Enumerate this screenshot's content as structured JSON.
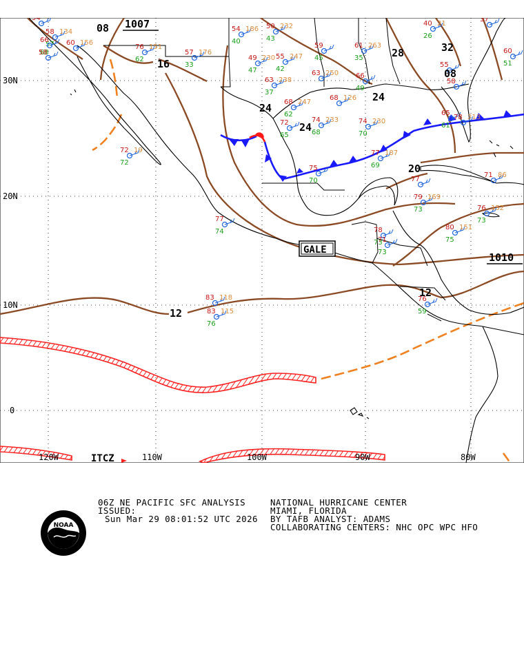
{
  "map": {
    "lat_labels": [
      "30N",
      "20N",
      "10N",
      "0"
    ],
    "lon_labels": [
      "120W",
      "110W",
      "100W",
      "90W",
      "80W"
    ],
    "pressure_boxes": [
      "1007",
      "1010"
    ],
    "isobar_labels": [
      "08",
      "16",
      "24",
      "24",
      "24",
      "28",
      "32",
      "20",
      "12",
      "12",
      "08"
    ],
    "features": {
      "gale": "GALE",
      "itcz": "ITCZ"
    },
    "colors": {
      "isobar": "#8b4a24",
      "cold_front": "#1a1aff",
      "warm_front": "#ff1a1a",
      "itcz": "#ff2020",
      "trough": "#f08020",
      "station": "#1e64dc",
      "temp": "#c81414",
      "dewpoint": "#18a018",
      "pressure_value": "#dc8c3c",
      "land": "#000000"
    },
    "stations": [
      {
        "t": "54",
        "d": "",
        "p": ""
      },
      {
        "t": "58",
        "d": "57",
        "p": "134"
      },
      {
        "t": "60",
        "d": "",
        "p": "156"
      },
      {
        "t": "66",
        "d": "68",
        "p": ""
      },
      {
        "t": "58",
        "d": "",
        "p": ""
      },
      {
        "t": "76",
        "d": "62",
        "p": "151"
      },
      {
        "t": "57",
        "d": "33",
        "p": "176"
      },
      {
        "t": "54",
        "d": "40",
        "p": "186"
      },
      {
        "t": "50",
        "d": "43",
        "p": "232"
      },
      {
        "t": "49",
        "d": "47",
        "p": "230"
      },
      {
        "t": "55",
        "d": "42",
        "p": "247"
      },
      {
        "t": "59",
        "d": "45",
        "p": ""
      },
      {
        "t": "61",
        "d": "35",
        "p": "263"
      },
      {
        "t": "63",
        "d": "37",
        "p": "238"
      },
      {
        "t": "63",
        "d": "",
        "p": "250"
      },
      {
        "t": "66",
        "d": "49",
        "p": ""
      },
      {
        "t": "68",
        "d": "62",
        "p": "247"
      },
      {
        "t": "72",
        "d": "65",
        "p": ""
      },
      {
        "t": "74",
        "d": "68",
        "p": "233"
      },
      {
        "t": "68",
        "d": "",
        "p": "126"
      },
      {
        "t": "74",
        "d": "70",
        "p": "230"
      },
      {
        "t": "77",
        "d": "69",
        "p": "187"
      },
      {
        "t": "75",
        "d": "70",
        "p": ""
      },
      {
        "t": "72",
        "d": "72",
        "p": "19"
      },
      {
        "t": "77",
        "d": "74",
        "p": ""
      },
      {
        "t": "78",
        "d": "73",
        "p": ""
      },
      {
        "t": "77",
        "d": "",
        "p": ""
      },
      {
        "t": "79",
        "d": "73",
        "p": "169"
      },
      {
        "t": "80",
        "d": "75",
        "p": "151"
      },
      {
        "t": "76",
        "d": "73",
        "p": "152"
      },
      {
        "t": "71",
        "d": "73",
        "p": ""
      },
      {
        "t": "83",
        "d": "",
        "p": "118"
      },
      {
        "t": "83",
        "d": "76",
        "p": "115"
      },
      {
        "t": "76",
        "d": "59",
        "p": ""
      },
      {
        "t": "37",
        "d": "",
        "p": ""
      },
      {
        "t": "40",
        "d": "26",
        "p": "21"
      },
      {
        "t": "60",
        "d": "51",
        "p": ""
      },
      {
        "t": "55",
        "d": "",
        "p": ""
      },
      {
        "t": "58",
        "d": "",
        "p": ""
      },
      {
        "t": "65",
        "d": "61",
        "p": ""
      },
      {
        "t": "78",
        "d": "",
        "p": "213"
      },
      {
        "t": "71",
        "d": "",
        "p": "86"
      }
    ]
  },
  "footer": {
    "title": "06Z NE PACIFIC SFC ANALYSIS",
    "issued_label": "ISSUED:",
    "issued_time": "Sun Mar 29 08:01:52 UTC 2026",
    "center": "NATIONAL HURRICANE CENTER",
    "location": "MIAMI, FLORIDA",
    "analyst": "BY TAFB ANALYST: ADAMS",
    "collaborating": "COLLABORATING CENTERS: NHC OPC WPC HFO",
    "logo_text": "NOAA"
  }
}
